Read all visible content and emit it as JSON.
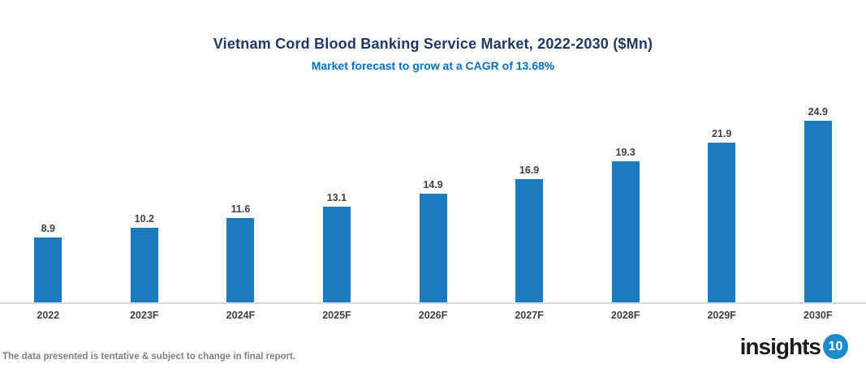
{
  "header": {
    "title": "Vietnam Cord Blood Banking Service Market, 2022-2030 ($Mn)",
    "subtitle": "Market forecast to grow at a CAGR of 13.68%"
  },
  "chart_data": {
    "type": "bar",
    "categories": [
      "2022",
      "2023F",
      "2024F",
      "2025F",
      "2026F",
      "2027F",
      "2028F",
      "2029F",
      "2030F"
    ],
    "values": [
      8.9,
      10.2,
      11.6,
      13.1,
      14.9,
      16.9,
      19.3,
      21.9,
      24.9
    ],
    "title": "Vietnam Cord Blood Banking Service Market, 2022-2030 ($Mn)",
    "subtitle": "Market forecast to grow at a CAGR of 13.68%",
    "xlabel": "",
    "ylabel": "",
    "ylim": [
      0,
      26
    ],
    "grid": false,
    "legend": false,
    "data_labels": true,
    "bar_color": "#1b7ac0"
  },
  "footer": {
    "note": "The data presented is tentative & subject to change in final report.",
    "logo_text": "insights",
    "logo_badge": "10"
  },
  "colors": {
    "title": "#1f3864",
    "subtitle": "#0070c0",
    "bar": "#1b7ac0",
    "label": "#404040",
    "axis_line": "#d9d9d9",
    "footer": "#808080",
    "logo_text": "#1a1a1a",
    "logo_circle": "#1e8bc9"
  }
}
